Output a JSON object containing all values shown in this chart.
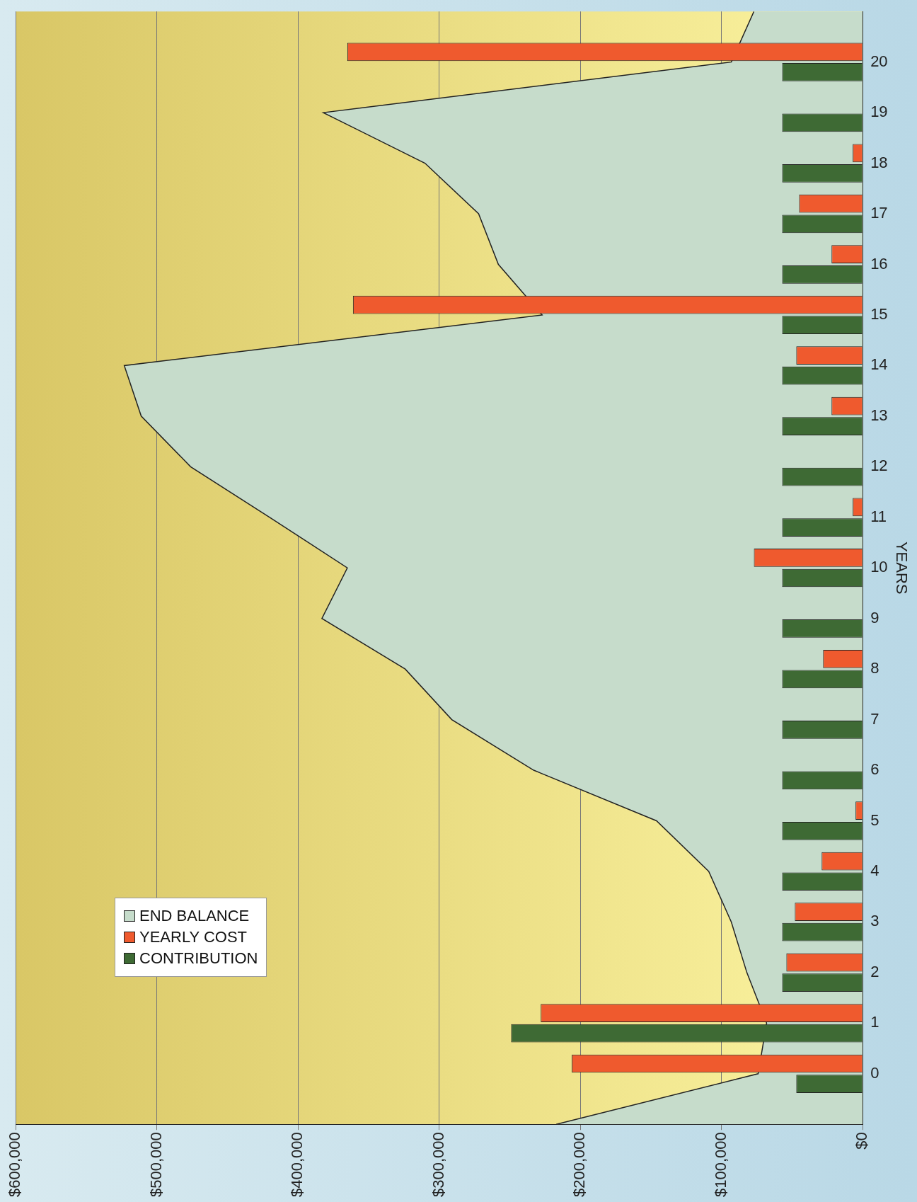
{
  "chart_data": {
    "type": "bar",
    "orientation": "horizontal",
    "ylabel": "YEARS",
    "x": [
      0,
      1,
      2,
      3,
      4,
      5,
      6,
      7,
      8,
      9,
      10,
      11,
      12,
      13,
      14,
      15,
      16,
      17,
      18,
      19,
      20
    ],
    "series": [
      {
        "name": "END BALANCE",
        "type": "area",
        "color": "#c6dccb",
        "x": [
          -1,
          0,
          1,
          2,
          3,
          4,
          5,
          6,
          7,
          8,
          9,
          10,
          11,
          12,
          13,
          14,
          15,
          16,
          17,
          18,
          19,
          20,
          21
        ],
        "values": [
          217000,
          74000,
          68000,
          82000,
          93000,
          109000,
          146000,
          233000,
          291000,
          324000,
          383000,
          365000,
          420000,
          476000,
          511000,
          523000,
          227000,
          258000,
          272000,
          310000,
          382000,
          93000,
          77000
        ]
      },
      {
        "name": "YEARLY COST",
        "color": "#ef5a2e",
        "values": [
          206000,
          228000,
          54000,
          48000,
          29000,
          5000,
          0,
          0,
          28000,
          0,
          77000,
          7000,
          0,
          22000,
          47000,
          361000,
          22000,
          45000,
          7000,
          0,
          365000
        ]
      },
      {
        "name": "CONTRIBUTION",
        "color": "#3e6a34",
        "values": [
          47000,
          249000,
          57000,
          57000,
          57000,
          57000,
          57000,
          57000,
          57000,
          57000,
          57000,
          57000,
          57000,
          57000,
          57000,
          57000,
          57000,
          57000,
          57000,
          57000,
          57000
        ]
      }
    ],
    "ylim": [
      -1,
      21
    ],
    "yticks": [
      0,
      1,
      2,
      3,
      4,
      5,
      6,
      7,
      8,
      9,
      10,
      11,
      12,
      13,
      14,
      15,
      16,
      17,
      18,
      19,
      20
    ],
    "xlim": [
      600000,
      0
    ],
    "xticks": [
      {
        "value": 0,
        "label": "$0"
      },
      {
        "value": 100000,
        "label": "$100,000"
      },
      {
        "value": 200000,
        "label": "$200,000"
      },
      {
        "value": 300000,
        "label": "$300,000"
      },
      {
        "value": 400000,
        "label": "$400,000"
      },
      {
        "value": 500000,
        "label": "$500,000"
      },
      {
        "value": 600000,
        "label": "$600,000"
      }
    ],
    "grid": "x",
    "legend": "bottom left"
  }
}
